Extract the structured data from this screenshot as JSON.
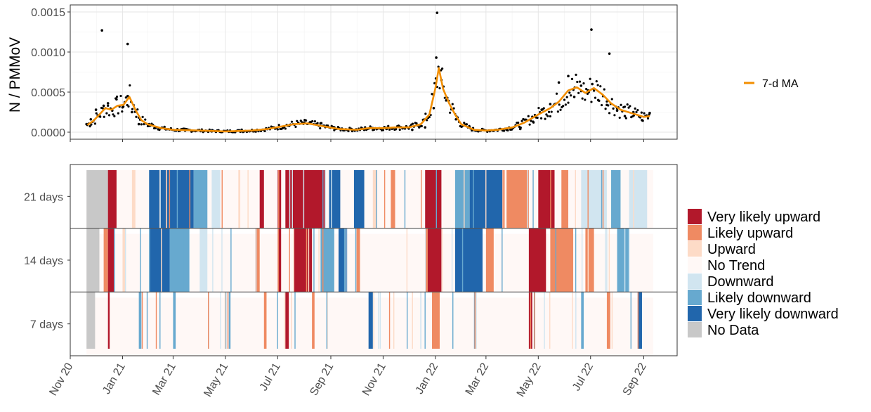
{
  "chart_data": [
    {
      "type": "scatter",
      "ylabel": "N / PMMoV",
      "ylim": [
        0,
        0.0015
      ],
      "yticks": [
        0,
        0.0005,
        0.001,
        0.0015
      ],
      "ytick_labels": [
        "0.0000",
        "0.0005",
        "0.0010",
        "0.0015"
      ],
      "x_range": [
        "2020-11-01",
        "2022-10-10"
      ],
      "x_ticks": [
        "2020-11-01",
        "2021-01-01",
        "2021-03-01",
        "2021-05-01",
        "2021-07-01",
        "2021-09-01",
        "2021-11-01",
        "2022-01-01",
        "2022-03-01",
        "2022-05-01",
        "2022-07-01",
        "2022-09-01"
      ],
      "grid": true,
      "legend": {
        "position": "right",
        "entries": [
          {
            "label": "7-d MA",
            "color": "#f28e00"
          }
        ]
      },
      "series": [
        {
          "name": "7-d MA",
          "kind": "line",
          "color": "#f28e00",
          "x": [
            "2020-11-21",
            "2020-11-28",
            "2020-12-05",
            "2020-12-12",
            "2020-12-19",
            "2020-12-26",
            "2021-01-02",
            "2021-01-09",
            "2021-01-16",
            "2021-01-23",
            "2021-01-30",
            "2021-02-15",
            "2021-03-01",
            "2021-04-01",
            "2021-05-01",
            "2021-06-01",
            "2021-06-20",
            "2021-07-05",
            "2021-07-20",
            "2021-08-05",
            "2021-08-25",
            "2021-09-10",
            "2021-10-01",
            "2021-10-15",
            "2021-11-01",
            "2021-11-15",
            "2021-12-01",
            "2021-12-15",
            "2021-12-25",
            "2022-01-01",
            "2022-01-05",
            "2022-01-10",
            "2022-01-17",
            "2022-01-24",
            "2022-01-31",
            "2022-02-15",
            "2022-03-01",
            "2022-03-15",
            "2022-04-01",
            "2022-04-15",
            "2022-05-01",
            "2022-05-15",
            "2022-05-25",
            "2022-06-05",
            "2022-06-15",
            "2022-06-25",
            "2022-07-05",
            "2022-07-15",
            "2022-07-25",
            "2022-08-05",
            "2022-08-20",
            "2022-09-01",
            "2022-09-08"
          ],
          "y": [
            9e-05,
            0.00014,
            0.00022,
            0.0003,
            0.00028,
            0.00033,
            0.00034,
            0.00044,
            0.00028,
            0.00015,
            0.0001,
            5e-05,
            3e-05,
            2e-05,
            1e-05,
            2e-05,
            4e-05,
            7e-05,
            0.0001,
            0.00011,
            7e-05,
            4e-05,
            3e-05,
            5e-05,
            5e-05,
            6e-05,
            6e-05,
            0.0001,
            0.00022,
            0.00055,
            0.0008,
            0.00054,
            0.00036,
            0.00022,
            0.0001,
            3e-05,
            2e-05,
            3e-05,
            6e-05,
            0.00012,
            0.00022,
            0.0003,
            0.00038,
            0.00052,
            0.00056,
            0.00049,
            0.00055,
            0.00047,
            0.00036,
            0.00028,
            0.00023,
            0.00019,
            0.0002
          ]
        },
        {
          "name": "",
          "kind": "points",
          "color": "#000000",
          "x": [
            "2020-11-20",
            "2020-11-25",
            "2020-12-01",
            "2020-12-05",
            "2020-12-10",
            "2020-12-15",
            "2020-12-20",
            "2020-12-25",
            "2021-01-01",
            "2021-01-07",
            "2021-01-12",
            "2021-01-20",
            "2021-02-01",
            "2021-02-20",
            "2021-03-15",
            "2021-04-15",
            "2021-05-20",
            "2021-06-15",
            "2021-07-15",
            "2021-08-01",
            "2021-08-20",
            "2021-09-05",
            "2021-09-25",
            "2021-10-10",
            "2021-10-20",
            "2021-11-05",
            "2021-11-20",
            "2021-12-05",
            "2021-12-20",
            "2021-12-30",
            "2022-01-02",
            "2022-01-08",
            "2022-01-14",
            "2022-01-25",
            "2022-02-10",
            "2022-03-05",
            "2022-03-25",
            "2022-04-10",
            "2022-04-25",
            "2022-05-05",
            "2022-05-15",
            "2022-05-25",
            "2022-06-05",
            "2022-06-12",
            "2022-06-20",
            "2022-06-28",
            "2022-07-03",
            "2022-07-10",
            "2022-07-20",
            "2022-08-01",
            "2022-08-10",
            "2022-08-20",
            "2022-08-30",
            "2022-09-08",
            "2020-12-08",
            "2021-01-07",
            "2022-01-03",
            "2022-07-02",
            "2022-07-23"
          ],
          "y": [
            0.0001,
            0.00016,
            0.00028,
            0.00021,
            0.00033,
            0.00036,
            0.00027,
            0.00041,
            0.00031,
            0.00045,
            0.00025,
            0.0001,
            8e-05,
            4e-05,
            2e-05,
            1e-05,
            3e-05,
            3e-05,
            9e-05,
            0.00012,
            0.00011,
            6e-05,
            4e-05,
            3e-05,
            5e-05,
            4e-05,
            7e-05,
            3e-05,
            6e-05,
            0.0003,
            0.00093,
            0.00065,
            0.0004,
            0.00016,
            6e-05,
            2e-05,
            3e-05,
            4e-05,
            0.00013,
            0.00028,
            0.00035,
            0.00062,
            0.0007,
            0.00044,
            0.00058,
            0.00052,
            0.0006,
            0.0004,
            0.00034,
            0.00027,
            0.0002,
            0.00025,
            0.00015,
            0.00024,
            0.00127,
            0.0011,
            0.00149,
            0.00128,
            0.00098
          ]
        }
      ]
    },
    {
      "type": "heatmap",
      "rows": [
        "21 days",
        "14 days",
        "7 days"
      ],
      "x_tick_labels": [
        "Nov 20",
        "Jan 21",
        "Mar 21",
        "May 21",
        "Jul 21",
        "Sep 21",
        "Nov 21",
        "Jan 22",
        "Mar 22",
        "May 22",
        "Jul 22",
        "Sep 22"
      ],
      "legend": {
        "position": "right",
        "entries": [
          {
            "label": "Very likely upward",
            "color": "#b2182b"
          },
          {
            "label": "Likely upward",
            "color": "#ef8a62"
          },
          {
            "label": "Upward",
            "color": "#fddbc7"
          },
          {
            "label": "No Trend",
            "color": "#fff8f6"
          },
          {
            "label": "Downward",
            "color": "#d1e5f0"
          },
          {
            "label": "Likely downward",
            "color": "#67a9cf"
          },
          {
            "label": "Very likely downward",
            "color": "#2166ac"
          },
          {
            "label": "No Data",
            "color": "#c8c8c8"
          }
        ]
      },
      "segments": {
        "21 days": [
          {
            "start": "2020-11-20",
            "end": "2020-12-15",
            "category": "No Data"
          },
          {
            "start": "2020-12-15",
            "end": "2020-12-25",
            "category": "Very likely upward"
          },
          {
            "start": "2021-01-12",
            "end": "2021-01-16",
            "category": "Upward"
          },
          {
            "start": "2021-02-01",
            "end": "2021-03-25",
            "category": "Very likely downward"
          },
          {
            "start": "2021-03-25",
            "end": "2021-04-10",
            "category": "Likely downward"
          },
          {
            "start": "2021-04-15",
            "end": "2021-04-25",
            "category": "Downward"
          },
          {
            "start": "2021-06-10",
            "end": "2021-06-15",
            "category": "Very likely upward"
          },
          {
            "start": "2021-07-01",
            "end": "2021-07-05",
            "category": "Very likely upward"
          },
          {
            "start": "2021-07-10",
            "end": "2021-08-25",
            "category": "Very likely upward"
          },
          {
            "start": "2021-08-30",
            "end": "2021-09-12",
            "category": "Very likely downward"
          },
          {
            "start": "2021-09-28",
            "end": "2021-10-10",
            "category": "Very likely downward"
          },
          {
            "start": "2021-10-20",
            "end": "2021-10-25",
            "category": "Upward"
          },
          {
            "start": "2021-11-10",
            "end": "2021-11-15",
            "category": "Likely upward"
          },
          {
            "start": "2021-12-20",
            "end": "2022-01-08",
            "category": "Very likely upward"
          },
          {
            "start": "2022-01-24",
            "end": "2022-02-10",
            "category": "Likely downward"
          },
          {
            "start": "2022-02-10",
            "end": "2022-03-20",
            "category": "Very likely downward"
          },
          {
            "start": "2022-03-25",
            "end": "2022-04-20",
            "category": "Likely upward"
          },
          {
            "start": "2022-05-01",
            "end": "2022-05-20",
            "category": "Very likely upward"
          },
          {
            "start": "2022-05-28",
            "end": "2022-06-05",
            "category": "Likely upward"
          },
          {
            "start": "2022-06-20",
            "end": "2022-07-20",
            "category": "Downward"
          },
          {
            "start": "2022-07-25",
            "end": "2022-08-05",
            "category": "Likely downward"
          },
          {
            "start": "2022-08-15",
            "end": "2022-09-05",
            "category": "Downward"
          }
        ],
        "14 days": [
          {
            "start": "2020-11-20",
            "end": "2020-12-05",
            "category": "No Data"
          },
          {
            "start": "2020-12-10",
            "end": "2020-12-15",
            "category": "Likely upward"
          },
          {
            "start": "2020-12-15",
            "end": "2020-12-22",
            "category": "Very likely upward"
          },
          {
            "start": "2021-01-01",
            "end": "2021-01-05",
            "category": "Upward"
          },
          {
            "start": "2021-02-01",
            "end": "2021-02-25",
            "category": "Very likely downward"
          },
          {
            "start": "2021-02-25",
            "end": "2021-03-20",
            "category": "Likely downward"
          },
          {
            "start": "2021-04-01",
            "end": "2021-04-10",
            "category": "Downward"
          },
          {
            "start": "2021-06-05",
            "end": "2021-06-10",
            "category": "Likely upward"
          },
          {
            "start": "2021-07-01",
            "end": "2021-07-05",
            "category": "Very likely upward"
          },
          {
            "start": "2021-07-20",
            "end": "2021-08-10",
            "category": "Very likely upward"
          },
          {
            "start": "2021-08-20",
            "end": "2021-09-05",
            "category": "Likely downward"
          },
          {
            "start": "2021-09-10",
            "end": "2021-09-20",
            "category": "Very likely downward"
          },
          {
            "start": "2021-10-01",
            "end": "2021-10-05",
            "category": "Likely upward"
          },
          {
            "start": "2021-12-22",
            "end": "2022-01-08",
            "category": "Very likely upward"
          },
          {
            "start": "2022-01-24",
            "end": "2022-02-25",
            "category": "Very likely downward"
          },
          {
            "start": "2022-03-01",
            "end": "2022-03-10",
            "category": "Likely upward"
          },
          {
            "start": "2022-04-20",
            "end": "2022-05-10",
            "category": "Very likely upward"
          },
          {
            "start": "2022-05-15",
            "end": "2022-06-10",
            "category": "Likely upward"
          },
          {
            "start": "2022-06-25",
            "end": "2022-07-05",
            "category": "Likely upward"
          },
          {
            "start": "2022-08-01",
            "end": "2022-08-15",
            "category": "Likely downward"
          }
        ],
        "7 days": [
          {
            "start": "2020-11-20",
            "end": "2020-11-30",
            "category": "No Data"
          },
          {
            "start": "2020-12-15",
            "end": "2020-12-17",
            "category": "Very likely upward"
          },
          {
            "start": "2021-01-20",
            "end": "2021-01-23",
            "category": "Likely downward"
          },
          {
            "start": "2021-03-01",
            "end": "2021-03-04",
            "category": "Likely downward"
          },
          {
            "start": "2021-05-05",
            "end": "2021-05-07",
            "category": "Likely downward"
          },
          {
            "start": "2021-06-15",
            "end": "2021-06-18",
            "category": "Likely upward"
          },
          {
            "start": "2021-07-10",
            "end": "2021-07-14",
            "category": "Very likely upward"
          },
          {
            "start": "2021-08-10",
            "end": "2021-08-13",
            "category": "Likely upward"
          },
          {
            "start": "2021-10-15",
            "end": "2021-10-20",
            "category": "Very likely downward"
          },
          {
            "start": "2021-12-28",
            "end": "2022-01-06",
            "category": "Likely upward"
          },
          {
            "start": "2022-02-15",
            "end": "2022-02-18",
            "category": "Likely downward"
          },
          {
            "start": "2022-04-20",
            "end": "2022-04-24",
            "category": "Very likely upward"
          },
          {
            "start": "2022-06-20",
            "end": "2022-06-23",
            "category": "Likely downward"
          },
          {
            "start": "2022-07-20",
            "end": "2022-07-24",
            "category": "Likely upward"
          },
          {
            "start": "2022-08-25",
            "end": "2022-08-30",
            "category": "Very likely downward"
          }
        ]
      }
    }
  ]
}
